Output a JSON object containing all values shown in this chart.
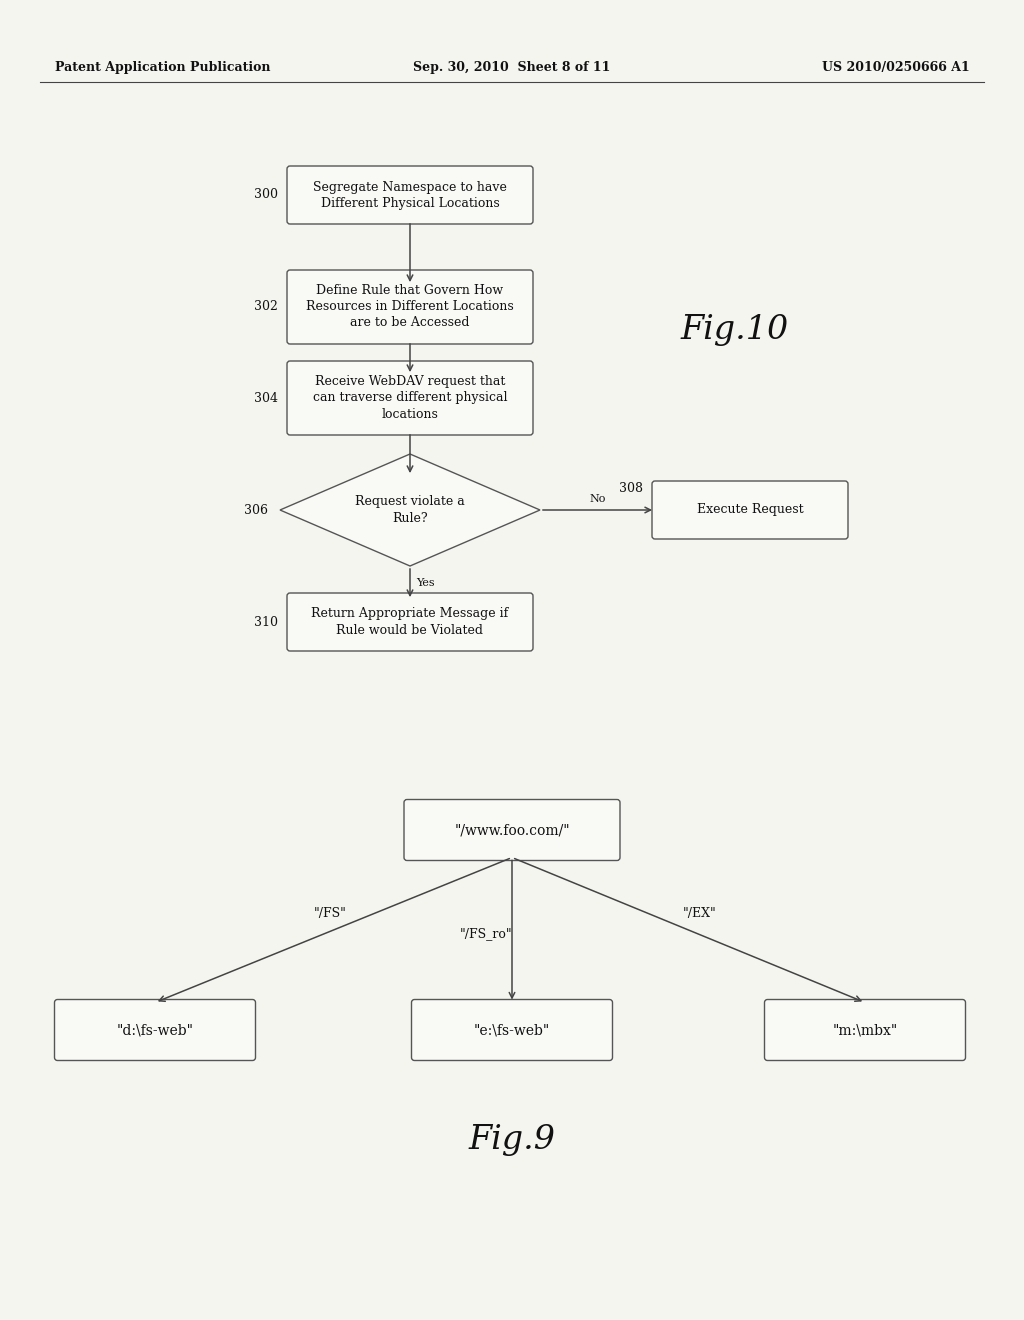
{
  "background_color": "#f5f5f0",
  "header_left": "Patent Application Publication",
  "header_mid": "Sep. 30, 2010  Sheet 8 of 11",
  "header_right": "US 2010/0250666 A1",
  "fig10_label": "Fig.10",
  "fig9_label": "Fig.9",
  "flow_nodes": [
    {
      "id": "300",
      "label": "Segregate Namespace to have\nDifferent Physical Locations"
    },
    {
      "id": "302",
      "label": "Define Rule that Govern How\nResources in Different Locations\nare to be Accessed"
    },
    {
      "id": "304",
      "label": "Receive WebDAV request that\ncan traverse different physical\nlocations"
    },
    {
      "id": "306",
      "label": "Request violate a\nRule?"
    },
    {
      "id": "308",
      "label": "Execute Request"
    },
    {
      "id": "310",
      "label": "Return Appropriate Message if\nRule would be Violated"
    }
  ],
  "tree_nodes": [
    {
      "id": "root",
      "label": "\"/www.foo.com/\""
    },
    {
      "id": "left",
      "label": "\"d:\\fs-web\""
    },
    {
      "id": "center",
      "label": "\"e:\\fs-web\""
    },
    {
      "id": "right",
      "label": "\"m:\\mbx\""
    }
  ]
}
